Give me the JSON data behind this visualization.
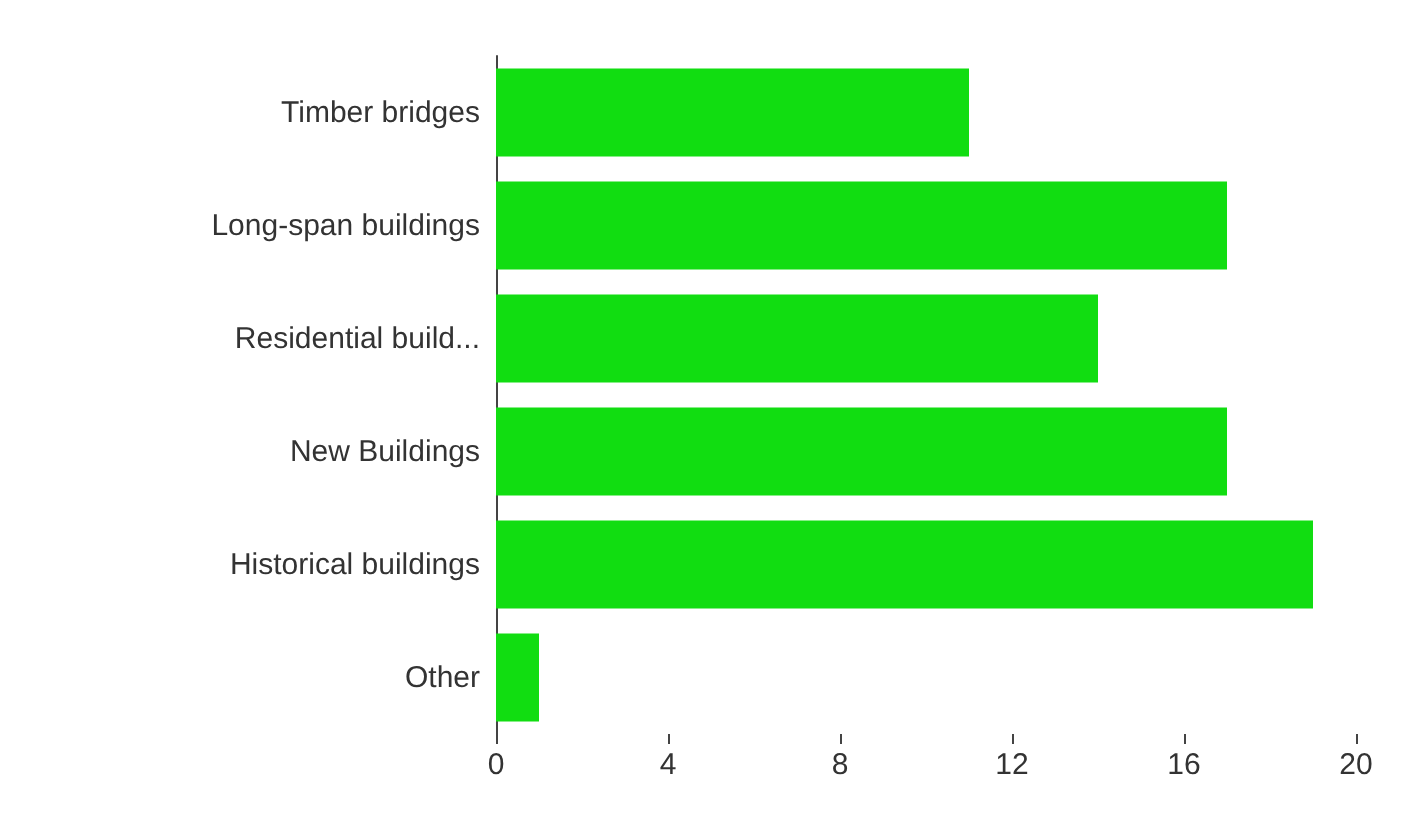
{
  "chart_data": {
    "type": "bar",
    "orientation": "horizontal",
    "categories": [
      "Timber bridges",
      "Long-span buildings",
      "Residential build...",
      "New Buildings",
      "Historical buildings",
      "Other"
    ],
    "values": [
      11,
      17,
      14,
      17,
      19,
      1
    ],
    "color": "#11dd11",
    "xlim": [
      0,
      20
    ],
    "xticks": [
      0,
      4,
      8,
      12,
      16,
      20
    ]
  }
}
